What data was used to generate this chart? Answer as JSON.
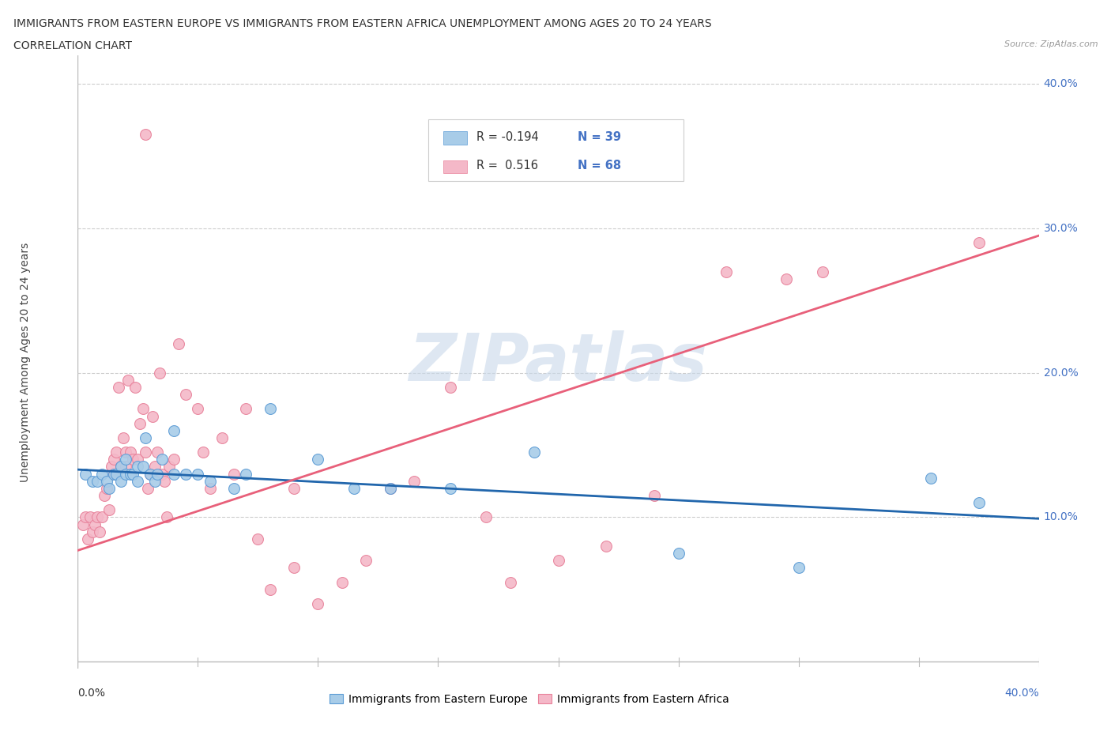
{
  "title_line1": "IMMIGRANTS FROM EASTERN EUROPE VS IMMIGRANTS FROM EASTERN AFRICA UNEMPLOYMENT AMONG AGES 20 TO 24 YEARS",
  "title_line2": "CORRELATION CHART",
  "source_text": "Source: ZipAtlas.com",
  "ylabel": "Unemployment Among Ages 20 to 24 years",
  "watermark": "ZIPatlas",
  "blue_R": -0.194,
  "blue_N": 39,
  "pink_R": 0.516,
  "pink_N": 68,
  "blue_color": "#a8cce8",
  "pink_color": "#f4b8c8",
  "blue_edge_color": "#5b9bd5",
  "pink_edge_color": "#e8819a",
  "blue_line_color": "#2166ac",
  "pink_line_color": "#e8607a",
  "xlim": [
    0.0,
    0.4
  ],
  "ylim": [
    -0.005,
    0.42
  ],
  "yticks": [
    0.1,
    0.2,
    0.3,
    0.4
  ],
  "ytick_labels": [
    "10.0%",
    "20.0%",
    "30.0%",
    "40.0%"
  ],
  "xticks": [
    0.0,
    0.05,
    0.1,
    0.15,
    0.2,
    0.25,
    0.3,
    0.35,
    0.4
  ],
  "blue_scatter_x": [
    0.003,
    0.006,
    0.008,
    0.01,
    0.012,
    0.013,
    0.015,
    0.016,
    0.018,
    0.018,
    0.02,
    0.02,
    0.022,
    0.023,
    0.025,
    0.025,
    0.027,
    0.028,
    0.03,
    0.032,
    0.033,
    0.035,
    0.04,
    0.04,
    0.045,
    0.05,
    0.055,
    0.065,
    0.07,
    0.08,
    0.1,
    0.115,
    0.13,
    0.155,
    0.19,
    0.25,
    0.3,
    0.355,
    0.375
  ],
  "blue_scatter_y": [
    0.13,
    0.125,
    0.125,
    0.13,
    0.125,
    0.12,
    0.13,
    0.13,
    0.125,
    0.135,
    0.13,
    0.14,
    0.13,
    0.13,
    0.135,
    0.125,
    0.135,
    0.155,
    0.13,
    0.125,
    0.13,
    0.14,
    0.16,
    0.13,
    0.13,
    0.13,
    0.125,
    0.12,
    0.13,
    0.175,
    0.14,
    0.12,
    0.12,
    0.12,
    0.145,
    0.075,
    0.065,
    0.127,
    0.11
  ],
  "pink_scatter_x": [
    0.002,
    0.003,
    0.004,
    0.005,
    0.006,
    0.007,
    0.008,
    0.009,
    0.01,
    0.011,
    0.012,
    0.013,
    0.014,
    0.015,
    0.015,
    0.016,
    0.017,
    0.018,
    0.019,
    0.02,
    0.02,
    0.021,
    0.022,
    0.023,
    0.024,
    0.025,
    0.026,
    0.027,
    0.028,
    0.028,
    0.029,
    0.03,
    0.031,
    0.032,
    0.033,
    0.034,
    0.035,
    0.036,
    0.037,
    0.038,
    0.04,
    0.042,
    0.045,
    0.05,
    0.052,
    0.055,
    0.06,
    0.065,
    0.07,
    0.075,
    0.08,
    0.09,
    0.09,
    0.1,
    0.11,
    0.12,
    0.13,
    0.14,
    0.155,
    0.17,
    0.18,
    0.2,
    0.22,
    0.24,
    0.27,
    0.295,
    0.31,
    0.375
  ],
  "pink_scatter_y": [
    0.095,
    0.1,
    0.085,
    0.1,
    0.09,
    0.095,
    0.1,
    0.09,
    0.1,
    0.115,
    0.12,
    0.105,
    0.135,
    0.13,
    0.14,
    0.145,
    0.19,
    0.135,
    0.155,
    0.145,
    0.135,
    0.195,
    0.145,
    0.14,
    0.19,
    0.14,
    0.165,
    0.175,
    0.145,
    0.365,
    0.12,
    0.13,
    0.17,
    0.135,
    0.145,
    0.2,
    0.13,
    0.125,
    0.1,
    0.135,
    0.14,
    0.22,
    0.185,
    0.175,
    0.145,
    0.12,
    0.155,
    0.13,
    0.175,
    0.085,
    0.05,
    0.065,
    0.12,
    0.04,
    0.055,
    0.07,
    0.12,
    0.125,
    0.19,
    0.1,
    0.055,
    0.07,
    0.08,
    0.115,
    0.27,
    0.265,
    0.27,
    0.29
  ],
  "blue_trend_x": [
    0.0,
    0.4
  ],
  "blue_trend_y": [
    0.133,
    0.099
  ],
  "pink_trend_x": [
    0.0,
    0.4
  ],
  "pink_trend_y": [
    0.077,
    0.295
  ],
  "label_color": "#4472c4",
  "grid_color": "#cccccc",
  "axis_color": "#999999"
}
